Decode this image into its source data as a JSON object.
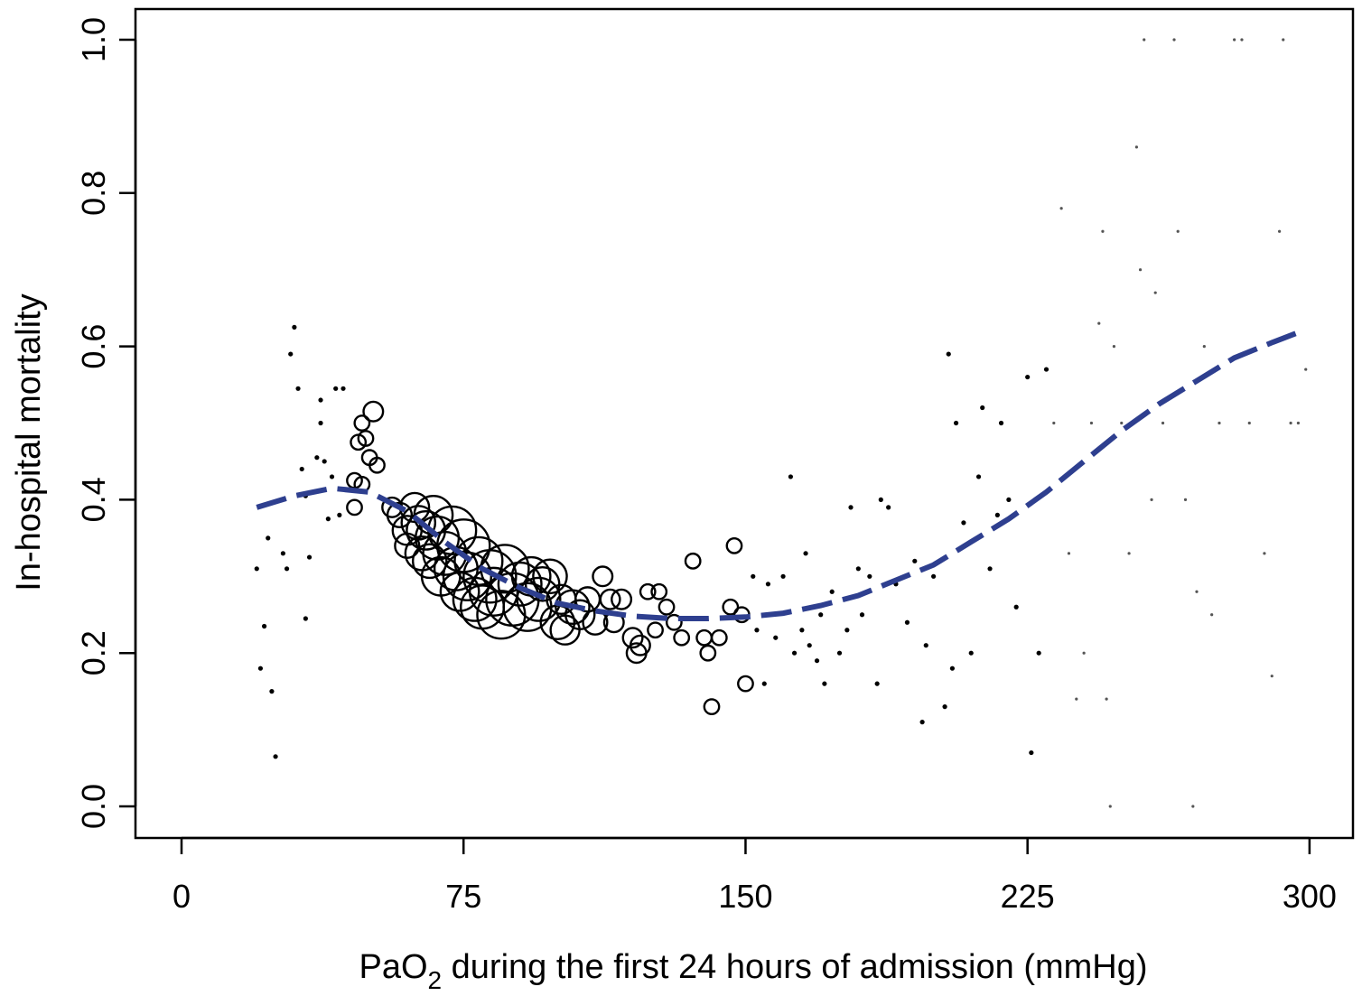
{
  "chart_data": {
    "type": "scatter",
    "title": "",
    "xlabel": {
      "main": "PaO",
      "subscript": "2",
      "rest": " during the first 24 hours of admission (mmHg)"
    },
    "ylabel": "In-hospital mortality",
    "xlim": [
      -12,
      312
    ],
    "ylim": [
      -0.04,
      1.04
    ],
    "xticks": [
      0,
      75,
      150,
      225,
      300
    ],
    "xtick_labels": [
      "0",
      "75",
      "150",
      "225",
      "300"
    ],
    "yticks": [
      0.0,
      0.2,
      0.4,
      0.6,
      0.8,
      1.0
    ],
    "ytick_labels": [
      "0.0",
      "0.2",
      "0.4",
      "0.6",
      "0.8",
      "1.0"
    ],
    "grid": false,
    "colors": {
      "points": "#000000",
      "fit_line": "#2e3f8f"
    },
    "point_size_note_values": "relative marker weight",
    "points": [
      [
        20,
        0.31,
        1
      ],
      [
        21,
        0.18,
        1
      ],
      [
        22,
        0.235,
        1
      ],
      [
        23,
        0.35,
        1
      ],
      [
        24,
        0.15,
        1
      ],
      [
        25,
        0.065,
        1
      ],
      [
        27,
        0.33,
        1
      ],
      [
        28,
        0.31,
        1
      ],
      [
        29,
        0.59,
        1
      ],
      [
        30,
        0.625,
        1
      ],
      [
        31,
        0.545,
        1
      ],
      [
        32,
        0.44,
        1
      ],
      [
        33,
        0.405,
        1
      ],
      [
        33,
        0.245,
        1
      ],
      [
        34,
        0.325,
        1
      ],
      [
        35,
        0.41,
        1
      ],
      [
        36,
        0.455,
        1
      ],
      [
        37,
        0.5,
        1
      ],
      [
        37,
        0.53,
        1
      ],
      [
        38,
        0.45,
        1
      ],
      [
        39,
        0.375,
        1
      ],
      [
        40,
        0.43,
        1
      ],
      [
        41,
        0.545,
        1
      ],
      [
        42,
        0.38,
        1
      ],
      [
        43,
        0.545,
        1
      ],
      [
        46,
        0.425,
        2
      ],
      [
        46,
        0.39,
        2
      ],
      [
        47,
        0.475,
        2
      ],
      [
        48,
        0.5,
        2
      ],
      [
        48,
        0.42,
        2
      ],
      [
        49,
        0.48,
        2
      ],
      [
        50,
        0.455,
        2
      ],
      [
        51,
        0.515,
        3
      ],
      [
        52,
        0.445,
        2
      ],
      [
        56,
        0.39,
        3
      ],
      [
        58,
        0.38,
        4
      ],
      [
        60,
        0.36,
        5
      ],
      [
        60,
        0.34,
        4
      ],
      [
        62,
        0.39,
        5
      ],
      [
        63,
        0.37,
        6
      ],
      [
        64,
        0.33,
        6
      ],
      [
        65,
        0.36,
        7
      ],
      [
        66,
        0.32,
        6
      ],
      [
        67,
        0.38,
        7
      ],
      [
        68,
        0.35,
        8
      ],
      [
        69,
        0.3,
        7
      ],
      [
        70,
        0.33,
        8
      ],
      [
        72,
        0.36,
        9
      ],
      [
        73,
        0.31,
        8
      ],
      [
        74,
        0.28,
        7
      ],
      [
        75,
        0.34,
        10
      ],
      [
        76,
        0.3,
        9
      ],
      [
        78,
        0.27,
        8
      ],
      [
        79,
        0.32,
        9
      ],
      [
        80,
        0.26,
        8
      ],
      [
        82,
        0.3,
        10
      ],
      [
        83,
        0.28,
        9
      ],
      [
        85,
        0.25,
        9
      ],
      [
        86,
        0.31,
        9
      ],
      [
        88,
        0.27,
        10
      ],
      [
        90,
        0.29,
        8
      ],
      [
        92,
        0.26,
        9
      ],
      [
        93,
        0.3,
        7
      ],
      [
        95,
        0.27,
        8
      ],
      [
        96,
        0.29,
        6
      ],
      [
        98,
        0.3,
        6
      ],
      [
        100,
        0.24,
        6
      ],
      [
        101,
        0.27,
        5
      ],
      [
        102,
        0.23,
        5
      ],
      [
        104,
        0.26,
        6
      ],
      [
        106,
        0.25,
        5
      ],
      [
        108,
        0.27,
        4
      ],
      [
        110,
        0.24,
        4
      ],
      [
        112,
        0.3,
        3
      ],
      [
        114,
        0.27,
        3
      ],
      [
        115,
        0.24,
        3
      ],
      [
        117,
        0.27,
        3
      ],
      [
        120,
        0.22,
        3
      ],
      [
        121,
        0.2,
        3
      ],
      [
        122,
        0.21,
        3
      ],
      [
        124,
        0.28,
        2
      ],
      [
        126,
        0.23,
        2
      ],
      [
        127,
        0.28,
        2
      ],
      [
        129,
        0.26,
        2
      ],
      [
        131,
        0.24,
        2
      ],
      [
        133,
        0.22,
        2
      ],
      [
        136,
        0.32,
        2
      ],
      [
        139,
        0.22,
        2
      ],
      [
        140,
        0.2,
        2
      ],
      [
        141,
        0.13,
        2
      ],
      [
        143,
        0.22,
        2
      ],
      [
        146,
        0.26,
        2
      ],
      [
        147,
        0.34,
        2
      ],
      [
        149,
        0.25,
        2
      ],
      [
        150,
        0.16,
        2
      ],
      [
        152,
        0.3,
        1
      ],
      [
        153,
        0.23,
        1
      ],
      [
        155,
        0.16,
        1
      ],
      [
        156,
        0.29,
        1
      ],
      [
        158,
        0.22,
        1
      ],
      [
        160,
        0.3,
        1
      ],
      [
        162,
        0.43,
        1
      ],
      [
        163,
        0.2,
        1
      ],
      [
        165,
        0.23,
        1
      ],
      [
        166,
        0.33,
        1
      ],
      [
        167,
        0.21,
        1
      ],
      [
        169,
        0.19,
        1
      ],
      [
        170,
        0.25,
        1
      ],
      [
        171,
        0.16,
        1
      ],
      [
        173,
        0.28,
        1
      ],
      [
        175,
        0.2,
        1
      ],
      [
        177,
        0.23,
        1
      ],
      [
        178,
        0.39,
        1
      ],
      [
        180,
        0.31,
        1
      ],
      [
        181,
        0.25,
        1
      ],
      [
        183,
        0.3,
        1
      ],
      [
        185,
        0.16,
        1
      ],
      [
        186,
        0.4,
        1
      ],
      [
        188,
        0.39,
        1
      ],
      [
        190,
        0.29,
        1
      ],
      [
        193,
        0.24,
        1
      ],
      [
        195,
        0.32,
        1
      ],
      [
        197,
        0.11,
        1
      ],
      [
        198,
        0.21,
        1
      ],
      [
        200,
        0.3,
        1
      ],
      [
        203,
        0.13,
        1
      ],
      [
        204,
        0.59,
        1
      ],
      [
        205,
        0.18,
        1
      ],
      [
        206,
        0.5,
        1
      ],
      [
        208,
        0.37,
        1
      ],
      [
        210,
        0.2,
        1
      ],
      [
        212,
        0.43,
        1
      ],
      [
        213,
        0.52,
        1
      ],
      [
        215,
        0.31,
        1
      ],
      [
        217,
        0.38,
        1
      ],
      [
        218,
        0.5,
        1
      ],
      [
        220,
        0.4,
        1
      ],
      [
        222,
        0.26,
        1
      ],
      [
        225,
        0.56,
        1
      ],
      [
        226,
        0.07,
        1
      ],
      [
        228,
        0.2,
        1
      ],
      [
        230,
        0.57,
        1
      ],
      [
        232,
        0.5,
        1
      ],
      [
        234,
        0.78,
        1
      ],
      [
        236,
        0.33,
        1
      ],
      [
        238,
        0.14,
        1
      ],
      [
        240,
        0.2,
        1
      ],
      [
        242,
        0.5,
        1
      ],
      [
        244,
        0.63,
        1
      ],
      [
        245,
        0.75,
        1
      ],
      [
        246,
        0.14,
        1
      ],
      [
        247,
        0.0,
        1
      ],
      [
        248,
        0.6,
        1
      ],
      [
        250,
        0.5,
        1
      ],
      [
        252,
        0.33,
        1
      ],
      [
        254,
        0.86,
        1
      ],
      [
        255,
        0.7,
        1
      ],
      [
        256,
        1.0,
        1
      ],
      [
        258,
        0.4,
        1
      ],
      [
        259,
        0.67,
        1
      ],
      [
        261,
        0.5,
        1
      ],
      [
        264,
        1.0,
        1
      ],
      [
        265,
        0.75,
        1
      ],
      [
        267,
        0.4,
        1
      ],
      [
        269,
        0.0,
        1
      ],
      [
        270,
        0.28,
        1
      ],
      [
        272,
        0.6,
        1
      ],
      [
        274,
        0.25,
        1
      ],
      [
        276,
        0.5,
        1
      ],
      [
        280,
        1.0,
        1
      ],
      [
        282,
        1.0,
        1
      ],
      [
        284,
        0.5,
        1
      ],
      [
        288,
        0.33,
        1
      ],
      [
        290,
        0.17,
        1
      ],
      [
        292,
        0.75,
        1
      ],
      [
        293,
        1.0,
        1
      ],
      [
        295,
        0.5,
        1
      ],
      [
        297,
        0.5,
        1
      ],
      [
        299,
        0.57,
        1
      ]
    ],
    "fit_line": [
      [
        20,
        0.39
      ],
      [
        30,
        0.405
      ],
      [
        40,
        0.415
      ],
      [
        50,
        0.41
      ],
      [
        60,
        0.385
      ],
      [
        70,
        0.345
      ],
      [
        80,
        0.31
      ],
      [
        90,
        0.285
      ],
      [
        100,
        0.265
      ],
      [
        110,
        0.255
      ],
      [
        120,
        0.248
      ],
      [
        130,
        0.245
      ],
      [
        140,
        0.245
      ],
      [
        150,
        0.247
      ],
      [
        160,
        0.252
      ],
      [
        170,
        0.262
      ],
      [
        180,
        0.275
      ],
      [
        190,
        0.295
      ],
      [
        200,
        0.315
      ],
      [
        210,
        0.345
      ],
      [
        220,
        0.375
      ],
      [
        230,
        0.41
      ],
      [
        240,
        0.45
      ],
      [
        250,
        0.49
      ],
      [
        260,
        0.525
      ],
      [
        270,
        0.555
      ],
      [
        280,
        0.585
      ],
      [
        290,
        0.605
      ],
      [
        298,
        0.62
      ]
    ]
  }
}
